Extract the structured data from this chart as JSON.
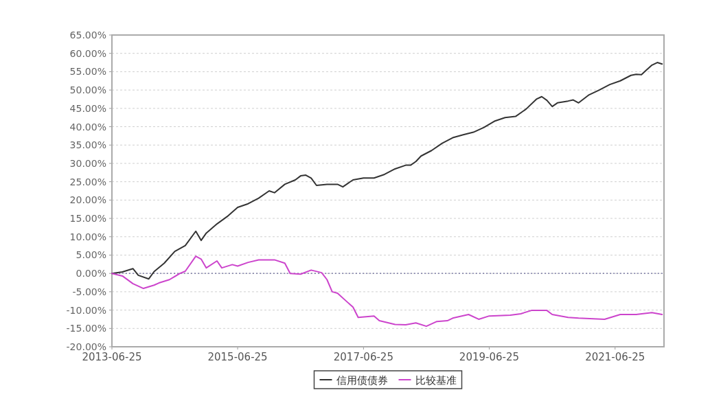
{
  "chart_data": {
    "type": "line",
    "xlim": [
      "2013-06-25",
      "2022-04-05"
    ],
    "xticks": [
      "2013-06-25",
      "2015-06-25",
      "2017-06-25",
      "2019-06-25",
      "2021-06-25"
    ],
    "ylim": [
      -20,
      65
    ],
    "yticks": [
      {
        "value": -20,
        "label": "-20.00%"
      },
      {
        "value": -15,
        "label": "-15.00%"
      },
      {
        "value": -10,
        "label": "-10.00%"
      },
      {
        "value": -5,
        "label": "-5.00%"
      },
      {
        "value": 0,
        "label": "0.00%"
      },
      {
        "value": 5,
        "label": "5.00%"
      },
      {
        "value": 10,
        "label": "10.00%"
      },
      {
        "value": 15,
        "label": "15.00%"
      },
      {
        "value": 20,
        "label": "20.00%"
      },
      {
        "value": 25,
        "label": "25.00%"
      },
      {
        "value": 30,
        "label": "30.00%"
      },
      {
        "value": 35,
        "label": "35.00%"
      },
      {
        "value": 40,
        "label": "40.00%"
      },
      {
        "value": 45,
        "label": "45.00%"
      },
      {
        "value": 50,
        "label": "50.00%"
      },
      {
        "value": 55,
        "label": "55.00%"
      },
      {
        "value": 60,
        "label": "60.00%"
      },
      {
        "value": 65,
        "label": "65.00%"
      }
    ],
    "grid": "y",
    "legend": "bottom",
    "ref_lines": [
      {
        "axis": "y",
        "value": 0,
        "color": "#6a6a9a",
        "line_style": "dotted"
      }
    ],
    "series": [
      {
        "name": "信用债债券",
        "color": "#333333",
        "x": [
          "2013-06-25",
          "2013-08-25",
          "2013-10-25",
          "2013-11-25",
          "2014-01-25",
          "2014-02-25",
          "2014-04-25",
          "2014-06-25",
          "2014-08-25",
          "2014-10-25",
          "2014-11-25",
          "2014-12-25",
          "2015-02-25",
          "2015-04-25",
          "2015-06-25",
          "2015-08-25",
          "2015-10-25",
          "2015-12-25",
          "2016-01-25",
          "2016-03-25",
          "2016-05-25",
          "2016-06-25",
          "2016-07-25",
          "2016-08-25",
          "2016-09-25",
          "2016-11-25",
          "2017-01-25",
          "2017-02-25",
          "2017-04-25",
          "2017-06-25",
          "2017-08-25",
          "2017-10-25",
          "2017-12-25",
          "2018-02-25",
          "2018-03-25",
          "2018-04-25",
          "2018-05-25",
          "2018-07-25",
          "2018-09-25",
          "2018-11-25",
          "2019-01-25",
          "2019-03-25",
          "2019-05-25",
          "2019-07-25",
          "2019-09-25",
          "2019-11-25",
          "2020-01-25",
          "2020-03-25",
          "2020-04-25",
          "2020-05-25",
          "2020-06-25",
          "2020-07-25",
          "2020-09-25",
          "2020-10-25",
          "2020-11-25",
          "2021-01-25",
          "2021-03-25",
          "2021-05-25",
          "2021-07-25",
          "2021-09-25",
          "2021-10-25",
          "2021-11-25",
          "2021-12-25",
          "2022-01-25",
          "2022-02-25",
          "2022-03-25"
        ],
        "values": [
          0,
          0.4,
          1.3,
          -0.5,
          -1.5,
          0.5,
          2.8,
          6,
          7.6,
          11.5,
          9,
          11,
          13.5,
          15.5,
          18,
          19,
          20.5,
          22.5,
          22,
          24.3,
          25.5,
          26.6,
          26.8,
          26,
          24,
          24.3,
          24.3,
          23.6,
          25.5,
          26,
          26,
          27,
          28.5,
          29.5,
          29.5,
          30.5,
          32,
          33.5,
          35.5,
          37,
          37.8,
          38.5,
          39.8,
          41.5,
          42.5,
          42.8,
          44.8,
          47.5,
          48.2,
          47.2,
          45.5,
          46.5,
          47,
          47.3,
          46.5,
          48.7,
          50,
          51.5,
          52.5,
          54,
          54.3,
          54.2,
          55.5,
          56.8,
          57.5,
          57.1
        ]
      },
      {
        "name": "比较基准",
        "color": "#cc44cc",
        "x": [
          "2013-06-25",
          "2013-08-25",
          "2013-10-25",
          "2013-12-25",
          "2014-02-25",
          "2014-03-25",
          "2014-05-25",
          "2014-07-25",
          "2014-08-25",
          "2014-10-25",
          "2014-11-25",
          "2014-12-25",
          "2015-02-25",
          "2015-03-25",
          "2015-05-25",
          "2015-06-25",
          "2015-08-25",
          "2015-10-25",
          "2016-01-25",
          "2016-03-25",
          "2016-04-25",
          "2016-06-25",
          "2016-08-25",
          "2016-10-25",
          "2016-11-25",
          "2016-12-25",
          "2017-01-25",
          "2017-03-25",
          "2017-04-25",
          "2017-05-25",
          "2017-08-25",
          "2017-09-25",
          "2017-12-25",
          "2018-02-25",
          "2018-04-25",
          "2018-06-25",
          "2018-08-25",
          "2018-10-25",
          "2018-11-25",
          "2019-02-25",
          "2019-04-25",
          "2019-06-25",
          "2019-10-25",
          "2019-12-25",
          "2020-02-25",
          "2020-05-25",
          "2020-06-25",
          "2020-09-25",
          "2020-11-25",
          "2021-04-25",
          "2021-07-25",
          "2021-10-25",
          "2022-01-25",
          "2022-03-25"
        ],
        "values": [
          0,
          -0.7,
          -2.8,
          -4.1,
          -3.2,
          -2.6,
          -1.7,
          0,
          0.6,
          4.7,
          3.9,
          1.5,
          3.4,
          1.5,
          2.4,
          2,
          3,
          3.7,
          3.7,
          2.8,
          0,
          -0.2,
          0.9,
          0.2,
          -1.7,
          -5,
          -5.4,
          -7.9,
          -9.2,
          -12,
          -11.6,
          -12.9,
          -13.9,
          -14,
          -13.5,
          -14.4,
          -13.1,
          -12.9,
          -12.2,
          -11.2,
          -12.5,
          -11.6,
          -11.4,
          -11,
          -10.1,
          -10.1,
          -11.2,
          -12,
          -12.2,
          -12.5,
          -11.2,
          -11.2,
          -10.7,
          -11.2
        ]
      }
    ]
  }
}
